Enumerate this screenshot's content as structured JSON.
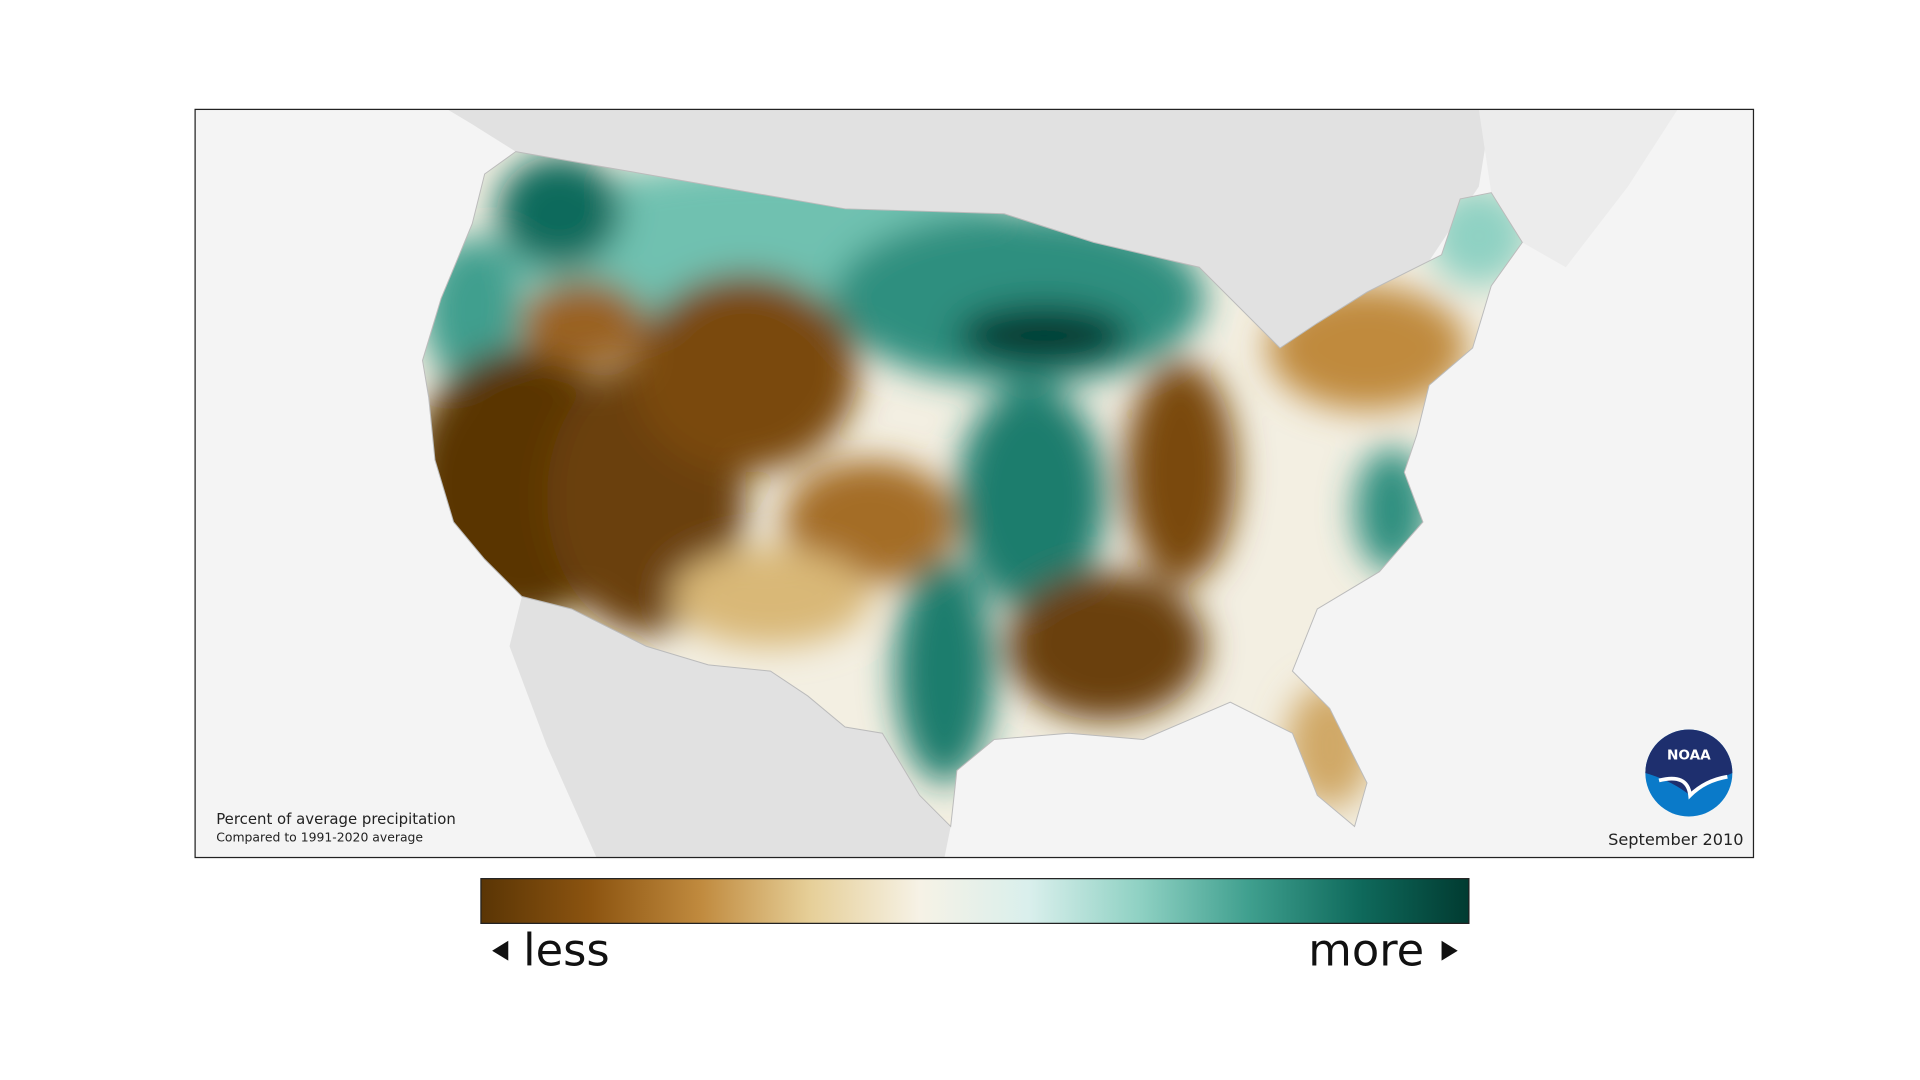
{
  "map": {
    "caption_title": "Percent of average precipitation",
    "caption_subtitle": "Compared to 1991-2020 average",
    "date": "September 2010",
    "logo": "NOAA",
    "legend": {
      "less": "less",
      "more": "more",
      "colors": [
        "#5a3505",
        "#8c5410",
        "#c08a3e",
        "#e6cf98",
        "#f6f2e6",
        "#d9efec",
        "#8fd1c3",
        "#3f9f8e",
        "#0f6a5c",
        "#013b31"
      ]
    }
  }
}
